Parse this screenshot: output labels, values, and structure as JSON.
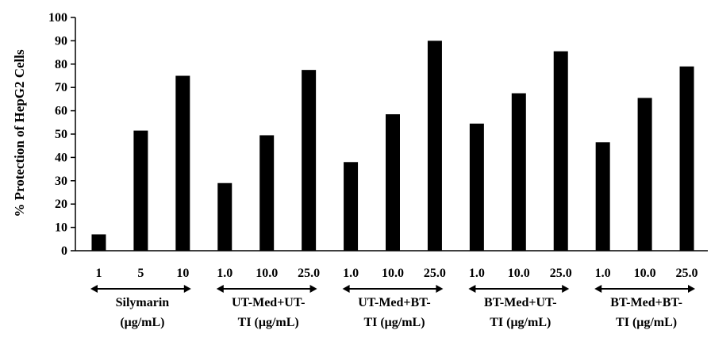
{
  "chart_data": {
    "type": "bar",
    "title": "",
    "xlabel": "",
    "ylabel": "% Protection of HepG2 Cells",
    "ylim": [
      0,
      100
    ],
    "yticks": [
      "0",
      "10",
      "20",
      "30",
      "40",
      "50",
      "60",
      "70",
      "80",
      "90",
      "100"
    ],
    "grid": false,
    "legend": "none",
    "bar_color": "#000000",
    "groups": [
      {
        "label_line1": "Silymarin",
        "label_line2": "(μg/mL)",
        "categories": [
          "1",
          "5",
          "10"
        ],
        "values": [
          7,
          51.5,
          75
        ]
      },
      {
        "label_line1": "UT-Med+UT-",
        "label_line2": "TI (μg/mL)",
        "categories": [
          "1.0",
          "10.0",
          "25.0"
        ],
        "values": [
          29,
          49.5,
          77.5
        ]
      },
      {
        "label_line1": "UT-Med+BT-",
        "label_line2": "TI (μg/mL)",
        "categories": [
          "1.0",
          "10.0",
          "25.0"
        ],
        "values": [
          38,
          58.5,
          90
        ]
      },
      {
        "label_line1": "BT-Med+UT-",
        "label_line2": "TI (μg/mL)",
        "categories": [
          "1.0",
          "10.0",
          "25.0"
        ],
        "values": [
          54.5,
          67.5,
          85.5
        ]
      },
      {
        "label_line1": "BT-Med+BT-",
        "label_line2": "TI (μg/mL)",
        "categories": [
          "1.0",
          "10.0",
          "25.0"
        ],
        "values": [
          46.5,
          65.5,
          79
        ]
      }
    ]
  }
}
